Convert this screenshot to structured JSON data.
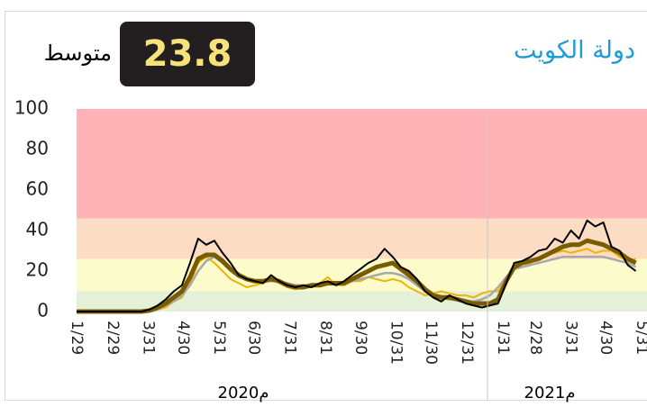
{
  "chart_data": {
    "type": "line",
    "title": "دولة الكويت",
    "average": {
      "label": "متوسط",
      "value": 23.8
    },
    "x": [
      "2020-01-29",
      "2020-02-05",
      "2020-02-12",
      "2020-02-19",
      "2020-02-26",
      "2020-03-04",
      "2020-03-11",
      "2020-03-18",
      "2020-03-25",
      "2020-04-01",
      "2020-04-08",
      "2020-04-15",
      "2020-04-22",
      "2020-04-29",
      "2020-05-06",
      "2020-05-13",
      "2020-05-20",
      "2020-05-27",
      "2020-06-03",
      "2020-06-10",
      "2020-06-17",
      "2020-06-24",
      "2020-07-01",
      "2020-07-08",
      "2020-07-15",
      "2020-07-22",
      "2020-07-29",
      "2020-08-05",
      "2020-08-12",
      "2020-08-19",
      "2020-08-26",
      "2020-09-02",
      "2020-09-09",
      "2020-09-16",
      "2020-09-23",
      "2020-09-30",
      "2020-10-07",
      "2020-10-14",
      "2020-10-21",
      "2020-10-28",
      "2020-11-04",
      "2020-11-11",
      "2020-11-18",
      "2020-11-25",
      "2020-12-02",
      "2020-12-09",
      "2020-12-16",
      "2020-12-23",
      "2020-12-30",
      "2021-01-06",
      "2021-01-13",
      "2021-01-20",
      "2021-01-27",
      "2021-02-03",
      "2021-02-10",
      "2021-02-17",
      "2021-02-24",
      "2021-03-03",
      "2021-03-10",
      "2021-03-17",
      "2021-03-24",
      "2021-03-31",
      "2021-04-07",
      "2021-04-14",
      "2021-04-21",
      "2021-04-28",
      "2021-05-05",
      "2021-05-12",
      "2021-05-19",
      "2021-05-26"
    ],
    "series": [
      {
        "color": "#f0b400",
        "width": 2,
        "values": [
          0,
          0,
          0,
          0,
          0,
          0,
          0,
          0,
          0,
          0,
          1,
          2,
          5,
          7,
          14,
          24,
          27,
          24,
          20,
          16,
          14,
          12,
          13,
          14,
          17,
          14,
          12,
          11,
          12,
          12,
          14,
          17,
          13,
          13,
          15,
          15,
          17,
          16,
          15,
          16,
          15,
          12,
          10,
          8,
          9,
          10,
          9,
          8,
          8,
          7,
          9,
          10,
          10,
          16,
          21,
          22,
          24,
          26,
          28,
          29,
          30,
          29,
          30,
          31,
          29,
          30,
          30,
          27,
          25,
          26
        ]
      },
      {
        "color": "#a8a8a8",
        "width": 2.5,
        "values": [
          0,
          0,
          0,
          0,
          0,
          0,
          0,
          0,
          0,
          0,
          1,
          3,
          5,
          8,
          13,
          20,
          25,
          27,
          24,
          20,
          17,
          16,
          15,
          15,
          15,
          15,
          14,
          13,
          13,
          13,
          13,
          14,
          14,
          14,
          15,
          16,
          17,
          18,
          19,
          19,
          18,
          16,
          13,
          10,
          8,
          7,
          6,
          6,
          5,
          5,
          6,
          8,
          12,
          17,
          21,
          22,
          23,
          24,
          25,
          26,
          27,
          27,
          27,
          27,
          27,
          27,
          26,
          25,
          24,
          22
        ]
      },
      {
        "color": "#7a5c00",
        "width": 5,
        "values": [
          0,
          0,
          0,
          0,
          0,
          0,
          0,
          0,
          0,
          0.5,
          2,
          4,
          7,
          10,
          17,
          26,
          28,
          28,
          25,
          21,
          18,
          16,
          15,
          15,
          16,
          15,
          13,
          12,
          12,
          13,
          13,
          14,
          14,
          14,
          16,
          18,
          20,
          22,
          23,
          24,
          21,
          18,
          15,
          11,
          8,
          7,
          7,
          6,
          5,
          4,
          4,
          4,
          6,
          15,
          22,
          24,
          25,
          26,
          28,
          30,
          32,
          33,
          33,
          35,
          34,
          33,
          31,
          29,
          26,
          24
        ]
      },
      {
        "color": "#000000",
        "width": 2,
        "values": [
          0,
          0,
          0,
          0,
          0,
          0,
          0,
          0,
          0,
          1,
          3,
          6,
          10,
          13,
          24,
          36,
          33,
          35,
          29,
          24,
          18,
          16,
          15,
          14,
          18,
          15,
          13,
          12,
          13,
          12,
          14,
          15,
          13,
          15,
          18,
          21,
          24,
          26,
          31,
          27,
          22,
          20,
          16,
          10,
          7,
          5,
          8,
          6,
          4,
          3,
          2,
          3,
          4,
          14,
          24,
          25,
          27,
          30,
          31,
          36,
          34,
          40,
          36,
          45,
          42,
          44,
          32,
          30,
          23,
          20
        ]
      }
    ],
    "bands": [
      {
        "from": 0,
        "to": 10,
        "color": "#e4f1d8"
      },
      {
        "from": 10,
        "to": 26,
        "color": "#fcfbcb"
      },
      {
        "from": 26,
        "to": 46,
        "color": "#fcdcc3"
      },
      {
        "from": 46,
        "to": 100,
        "color": "#ffb3b7"
      }
    ],
    "xlim": [
      "2020-01-29",
      "2021-05-31"
    ],
    "xticks": [
      {
        "value": "2020-01-29",
        "label": "1/29"
      },
      {
        "value": "2020-02-29",
        "label": "2/29"
      },
      {
        "value": "2020-03-31",
        "label": "3/31"
      },
      {
        "value": "2020-04-30",
        "label": "4/30"
      },
      {
        "value": "2020-05-31",
        "label": "5/31"
      },
      {
        "value": "2020-06-30",
        "label": "6/30"
      },
      {
        "value": "2020-07-31",
        "label": "7/31"
      },
      {
        "value": "2020-08-31",
        "label": "8/31"
      },
      {
        "value": "2020-09-30",
        "label": "9/30"
      },
      {
        "value": "2020-10-31",
        "label": "10/31"
      },
      {
        "value": "2020-11-30",
        "label": "11/30"
      },
      {
        "value": "2020-12-31",
        "label": "12/31"
      },
      {
        "value": "2021-01-31",
        "label": "1/31"
      },
      {
        "value": "2021-02-28",
        "label": "2/28"
      },
      {
        "value": "2021-03-31",
        "label": "3/31"
      },
      {
        "value": "2021-04-30",
        "label": "4/30"
      },
      {
        "value": "2021-05-31",
        "label": "5/31"
      }
    ],
    "x_group_labels": [
      "2020م",
      "2021م"
    ],
    "ylim": [
      0,
      100
    ],
    "yticks": [
      0,
      20,
      40,
      60,
      80,
      100
    ]
  }
}
